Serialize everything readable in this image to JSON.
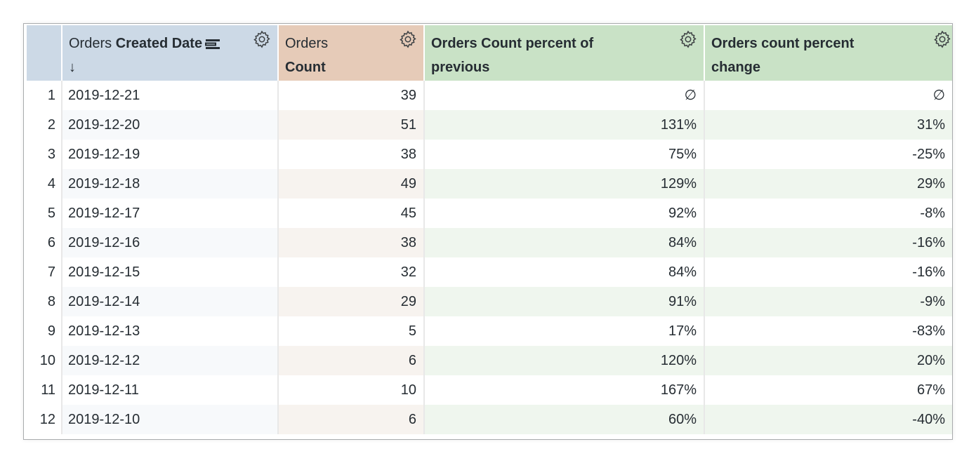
{
  "columns": [
    {
      "prefix": "Orders",
      "label": "Created Date",
      "sort_arrow": "↓"
    },
    {
      "prefix": "Orders",
      "label": "Count"
    },
    {
      "label": "Orders Count percent of previous"
    },
    {
      "label": "Orders count percent change"
    }
  ],
  "header_colors": {
    "dimension": "#ccd9e6",
    "measure": "#e6cbb8",
    "calculation": "#c9e2c6"
  },
  "icons": [
    "gear-icon",
    "pivot-icon",
    "sort-arrow-down-icon"
  ],
  "rows": [
    {
      "n": "1",
      "date": "2019-12-21",
      "count": "39",
      "pct_prev": "∅",
      "pct_change": "∅"
    },
    {
      "n": "2",
      "date": "2019-12-20",
      "count": "51",
      "pct_prev": "131%",
      "pct_change": "31%"
    },
    {
      "n": "3",
      "date": "2019-12-19",
      "count": "38",
      "pct_prev": "75%",
      "pct_change": "-25%"
    },
    {
      "n": "4",
      "date": "2019-12-18",
      "count": "49",
      "pct_prev": "129%",
      "pct_change": "29%"
    },
    {
      "n": "5",
      "date": "2019-12-17",
      "count": "45",
      "pct_prev": "92%",
      "pct_change": "-8%"
    },
    {
      "n": "6",
      "date": "2019-12-16",
      "count": "38",
      "pct_prev": "84%",
      "pct_change": "-16%"
    },
    {
      "n": "7",
      "date": "2019-12-15",
      "count": "32",
      "pct_prev": "84%",
      "pct_change": "-16%"
    },
    {
      "n": "8",
      "date": "2019-12-14",
      "count": "29",
      "pct_prev": "91%",
      "pct_change": "-9%"
    },
    {
      "n": "9",
      "date": "2019-12-13",
      "count": "5",
      "pct_prev": "17%",
      "pct_change": "-83%"
    },
    {
      "n": "10",
      "date": "2019-12-12",
      "count": "6",
      "pct_prev": "120%",
      "pct_change": "20%"
    },
    {
      "n": "11",
      "date": "2019-12-11",
      "count": "10",
      "pct_prev": "167%",
      "pct_change": "67%"
    },
    {
      "n": "12",
      "date": "2019-12-10",
      "count": "6",
      "pct_prev": "60%",
      "pct_change": "-40%"
    }
  ]
}
